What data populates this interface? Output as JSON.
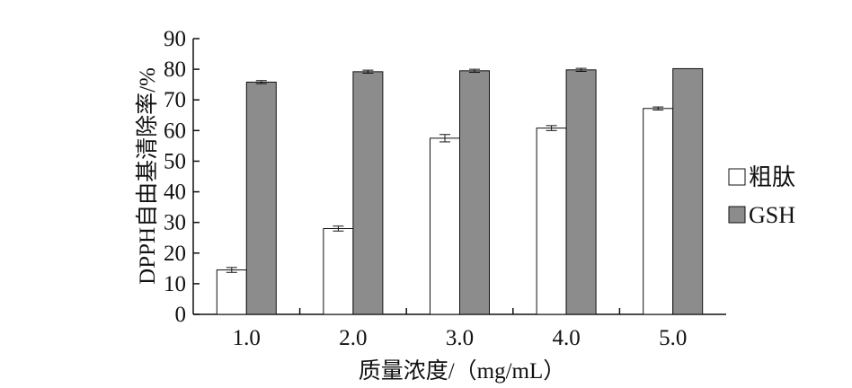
{
  "chart_data": {
    "type": "bar",
    "categories": [
      "1.0",
      "2.0",
      "3.0",
      "4.0",
      "5.0"
    ],
    "series": [
      {
        "name": "粗肽",
        "values": [
          14.5,
          28.0,
          57.5,
          60.8,
          67.2
        ],
        "errors": [
          0.8,
          0.8,
          1.2,
          0.8,
          0.5
        ],
        "color": "#ffffff"
      },
      {
        "name": "GSH",
        "values": [
          75.8,
          79.2,
          79.5,
          79.8,
          80.2
        ],
        "errors": [
          0.5,
          0.5,
          0.5,
          0.5,
          0.0
        ],
        "color": "#8c8c8c"
      }
    ],
    "xlabel": "质量浓度/（mg/mL）",
    "ylabel": "DPPH自由基清除率/%",
    "ylim": [
      0,
      90
    ],
    "yticks": [
      "0",
      "10",
      "20",
      "30",
      "40",
      "50",
      "60",
      "70",
      "80",
      "90"
    ],
    "grid": false,
    "legend_position": "right"
  }
}
